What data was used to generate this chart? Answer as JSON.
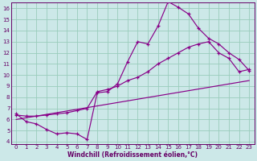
{
  "xlabel": "Windchill (Refroidissement éolien,°C)",
  "bg_color": "#cce8e8",
  "grid_color": "#99ccbb",
  "line_color": "#880088",
  "xlim": [
    -0.5,
    23.5
  ],
  "ylim": [
    3.8,
    16.5
  ],
  "yticks": [
    4,
    5,
    6,
    7,
    8,
    9,
    10,
    11,
    12,
    13,
    14,
    15,
    16
  ],
  "xticks": [
    0,
    1,
    2,
    3,
    4,
    5,
    6,
    7,
    8,
    9,
    10,
    11,
    12,
    13,
    14,
    15,
    16,
    17,
    18,
    19,
    20,
    21,
    22,
    23
  ],
  "line1_x": [
    0,
    1,
    2,
    3,
    4,
    5,
    6,
    7,
    8,
    9,
    10,
    11,
    12,
    13,
    14,
    15,
    16,
    17,
    18,
    19,
    20,
    21,
    22,
    23
  ],
  "line1_y": [
    6.5,
    5.8,
    5.6,
    5.1,
    4.7,
    4.8,
    4.7,
    4.2,
    8.4,
    8.5,
    9.2,
    11.2,
    13.0,
    12.8,
    14.4,
    16.6,
    16.1,
    15.5,
    14.2,
    13.3,
    12.8,
    12.0,
    11.4,
    10.4
  ],
  "line2_x": [
    0,
    1,
    2,
    3,
    4,
    5,
    6,
    7,
    8,
    9,
    10,
    11,
    12,
    13,
    14,
    15,
    16,
    17,
    18,
    19,
    20,
    21,
    22,
    23
  ],
  "line2_y": [
    6.4,
    6.3,
    6.3,
    6.4,
    6.5,
    6.6,
    6.8,
    7.0,
    8.5,
    8.7,
    9.0,
    9.5,
    9.8,
    10.3,
    11.0,
    11.5,
    12.0,
    12.5,
    12.8,
    13.0,
    12.0,
    11.5,
    10.3,
    10.5
  ],
  "line3_x": [
    0,
    23
  ],
  "line3_y": [
    6.0,
    9.5
  ]
}
